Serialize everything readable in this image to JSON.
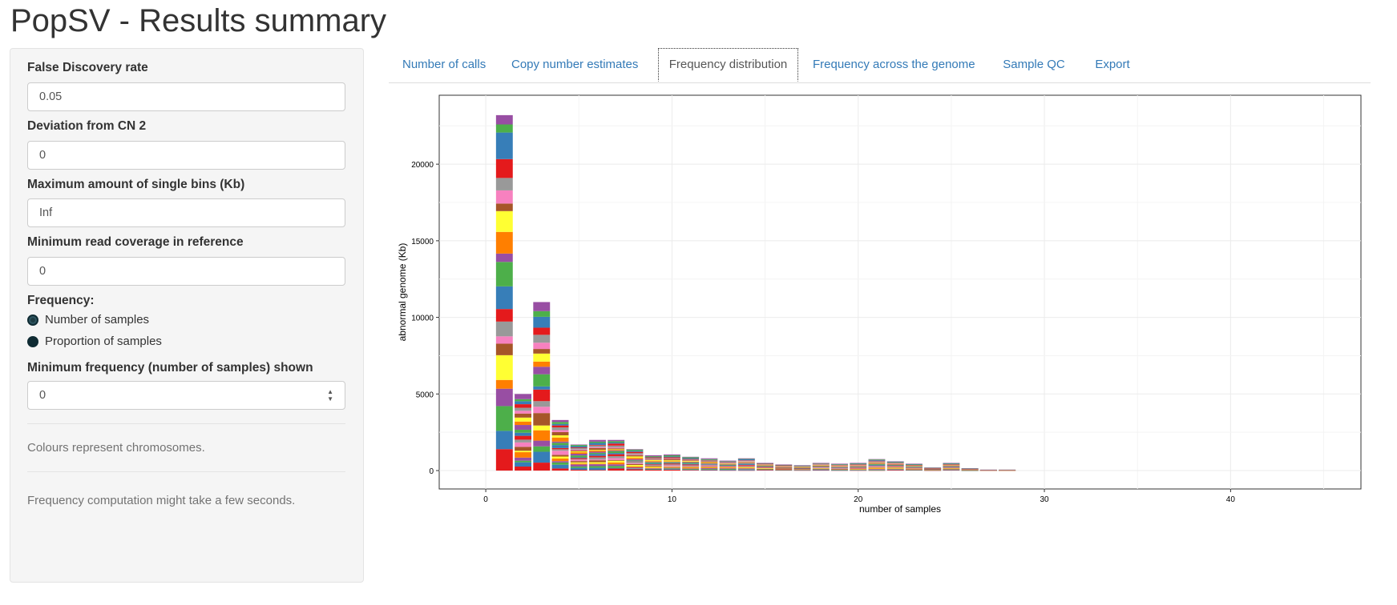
{
  "page": {
    "title": "PopSV - Results summary"
  },
  "sidebar": {
    "fdr": {
      "label": "False Discovery rate",
      "value": "0.05"
    },
    "cn_dev": {
      "label": "Deviation from CN 2",
      "value": "0"
    },
    "max_single": {
      "label": "Maximum amount of single bins (Kb)",
      "value": "Inf"
    },
    "min_cov": {
      "label": "Minimum read coverage in reference",
      "value": "0"
    },
    "frequency": {
      "label": "Frequency:",
      "options": [
        "Number of samples",
        "Proportion of samples"
      ],
      "selected": "Number of samples"
    },
    "min_freq": {
      "label": "Minimum frequency (number of samples) shown",
      "value": "0"
    },
    "help1": "Colours represent chromosomes.",
    "help2": "Frequency computation might take a few seconds."
  },
  "tabs": [
    {
      "label": "Number of calls"
    },
    {
      "label": "Copy number estimates"
    },
    {
      "label": "Frequency distribution"
    },
    {
      "label": "Frequency across the genome"
    },
    {
      "label": "Sample QC"
    },
    {
      "label": "Export"
    }
  ],
  "active_tab": "Frequency distribution",
  "chart_data": {
    "type": "bar",
    "stacked": true,
    "xlabel": "number of samples",
    "ylabel": "abnormal genome (Kb)",
    "xlim": [
      -2.5,
      47
    ],
    "ylim": [
      -1200,
      24500
    ],
    "xticks": [
      0,
      10,
      20,
      30,
      40
    ],
    "yticks": [
      0,
      5000,
      10000,
      15000,
      20000
    ],
    "grid": true,
    "legend": "none",
    "x": [
      1,
      2,
      3,
      4,
      5,
      6,
      7,
      8,
      9,
      10,
      11,
      12,
      13,
      14,
      15,
      16,
      17,
      18,
      19,
      20,
      21,
      22,
      23,
      24,
      25,
      26,
      27,
      28
    ],
    "values": [
      23200,
      5000,
      11000,
      3300,
      1700,
      2000,
      2000,
      1400,
      1000,
      1050,
      900,
      800,
      650,
      800,
      500,
      400,
      350,
      500,
      450,
      500,
      750,
      600,
      450,
      200,
      500,
      150,
      60,
      60
    ],
    "palette": [
      "#e41a1c",
      "#377eb8",
      "#4daf4a",
      "#984ea3",
      "#ff7f00",
      "#ffff33",
      "#a65628",
      "#f781bf",
      "#999999"
    ]
  }
}
